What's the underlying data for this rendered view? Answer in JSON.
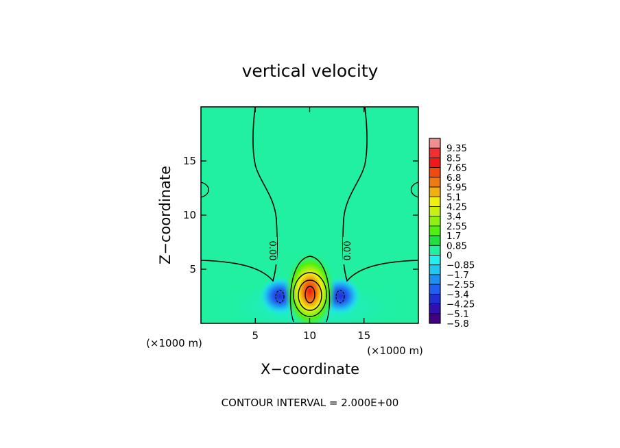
{
  "chart_data": {
    "type": "heatmap",
    "title": "vertical velocity",
    "xlabel": "X−coordinate",
    "ylabel": "Z−coordinate",
    "x_unit_left": "(×1000 m)",
    "x_unit_right": "(×1000 m)",
    "xlim": [
      0,
      20
    ],
    "ylim": [
      0,
      20
    ],
    "x_ticks": [
      5,
      10,
      15
    ],
    "y_ticks": [
      5,
      10,
      15
    ],
    "x_tick_labels": [
      "5",
      "10",
      "15"
    ],
    "y_tick_labels": [
      "5",
      "10",
      "15"
    ],
    "contour_label": "0.00",
    "footer": "CONTOUR INTERVAL = 2.000E+00",
    "colorbar": {
      "labels": [
        "9.35",
        "8.5",
        "7.65",
        "6.8",
        "5.95",
        "5.1",
        "4.25",
        "3.4",
        "2.55",
        "1.7",
        "0.85",
        "0",
        "−0.85",
        "−1.7",
        "−2.55",
        "−3.4",
        "−4.25",
        "−5.1",
        "−5.8"
      ],
      "colors": [
        "#f08f8f",
        "#f03030",
        "#f01818",
        "#f04a10",
        "#f07a10",
        "#f0b010",
        "#f0f010",
        "#c8f010",
        "#90f010",
        "#50f010",
        "#20e040",
        "#20f0a0",
        "#20f0f0",
        "#20c8f0",
        "#2090f0",
        "#2060f0",
        "#2030d0",
        "#3010b0",
        "#400080"
      ]
    }
  }
}
